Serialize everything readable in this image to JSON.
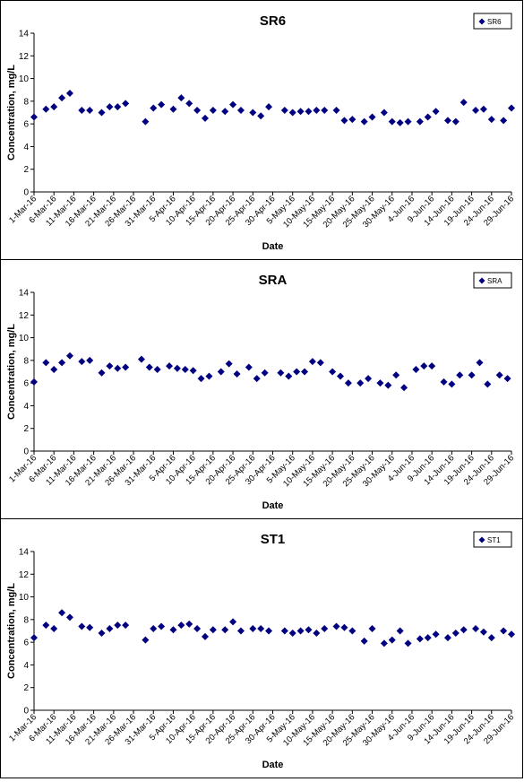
{
  "chart_data": [
    {
      "type": "scatter",
      "title": "SR6",
      "xlabel": "Date",
      "ylabel": "Concentration, mg/L",
      "ylim": [
        0,
        14
      ],
      "yticks": [
        0,
        2,
        4,
        6,
        8,
        10,
        12,
        14
      ],
      "xlim": [
        "2016-03-01",
        "2016-06-29"
      ],
      "xtick_labels": [
        "1-Mar-16",
        "6-Mar-16",
        "11-Mar-16",
        "16-Mar-16",
        "21-Mar-16",
        "26-Mar-16",
        "31-Mar-16",
        "5-Apr-16",
        "10-Apr-16",
        "15-Apr-16",
        "20-Apr-16",
        "25-Apr-16",
        "30-Apr-16",
        "5-May-16",
        "10-May-16",
        "15-May-16",
        "20-May-16",
        "25-May-16",
        "30-May-16",
        "4-Jun-16",
        "9-Jun-16",
        "14-Jun-16",
        "19-Jun-16",
        "24-Jun-16",
        "29-Jun-16"
      ],
      "legend": "top-right",
      "grid": false,
      "series": [
        {
          "name": "SR6",
          "color": "#000080",
          "points": [
            [
              "2016-03-01",
              6.6
            ],
            [
              "2016-03-04",
              7.3
            ],
            [
              "2016-03-06",
              7.5
            ],
            [
              "2016-03-08",
              8.3
            ],
            [
              "2016-03-10",
              8.7
            ],
            [
              "2016-03-13",
              7.2
            ],
            [
              "2016-03-15",
              7.2
            ],
            [
              "2016-03-18",
              7.0
            ],
            [
              "2016-03-20",
              7.5
            ],
            [
              "2016-03-22",
              7.5
            ],
            [
              "2016-03-24",
              7.8
            ],
            [
              "2016-03-29",
              6.2
            ],
            [
              "2016-03-31",
              7.4
            ],
            [
              "2016-04-02",
              7.7
            ],
            [
              "2016-04-05",
              7.3
            ],
            [
              "2016-04-07",
              8.3
            ],
            [
              "2016-04-09",
              7.8
            ],
            [
              "2016-04-11",
              7.2
            ],
            [
              "2016-04-13",
              6.5
            ],
            [
              "2016-04-15",
              7.2
            ],
            [
              "2016-04-18",
              7.1
            ],
            [
              "2016-04-20",
              7.7
            ],
            [
              "2016-04-22",
              7.2
            ],
            [
              "2016-04-25",
              7.0
            ],
            [
              "2016-04-27",
              6.7
            ],
            [
              "2016-04-29",
              7.5
            ],
            [
              "2016-05-03",
              7.2
            ],
            [
              "2016-05-05",
              7.0
            ],
            [
              "2016-05-07",
              7.1
            ],
            [
              "2016-05-09",
              7.1
            ],
            [
              "2016-05-11",
              7.2
            ],
            [
              "2016-05-13",
              7.2
            ],
            [
              "2016-05-16",
              7.2
            ],
            [
              "2016-05-18",
              6.3
            ],
            [
              "2016-05-20",
              6.4
            ],
            [
              "2016-05-23",
              6.2
            ],
            [
              "2016-05-25",
              6.6
            ],
            [
              "2016-05-28",
              7.0
            ],
            [
              "2016-05-30",
              6.2
            ],
            [
              "2016-06-01",
              6.1
            ],
            [
              "2016-06-03",
              6.2
            ],
            [
              "2016-06-06",
              6.2
            ],
            [
              "2016-06-08",
              6.6
            ],
            [
              "2016-06-10",
              7.1
            ],
            [
              "2016-06-13",
              6.3
            ],
            [
              "2016-06-15",
              6.2
            ],
            [
              "2016-06-17",
              7.9
            ],
            [
              "2016-06-20",
              7.2
            ],
            [
              "2016-06-22",
              7.3
            ],
            [
              "2016-06-24",
              6.4
            ],
            [
              "2016-06-27",
              6.3
            ],
            [
              "2016-06-29",
              7.4
            ]
          ]
        }
      ]
    },
    {
      "type": "scatter",
      "title": "SRA",
      "xlabel": "Date",
      "ylabel": "Concentration, mg/L",
      "ylim": [
        0,
        14
      ],
      "yticks": [
        0,
        2,
        4,
        6,
        8,
        10,
        12,
        14
      ],
      "xlim": [
        "2016-03-01",
        "2016-06-29"
      ],
      "xtick_labels": [
        "1-Mar-16",
        "6-Mar-16",
        "11-Mar-16",
        "16-Mar-16",
        "21-Mar-16",
        "26-Mar-16",
        "31-Mar-16",
        "5-Apr-16",
        "10-Apr-16",
        "15-Apr-16",
        "20-Apr-16",
        "25-Apr-16",
        "30-Apr-16",
        "5-May-16",
        "10-May-16",
        "15-May-16",
        "20-May-16",
        "25-May-16",
        "30-May-16",
        "4-Jun-16",
        "9-Jun-16",
        "14-Jun-16",
        "19-Jun-16",
        "24-Jun-16",
        "29-Jun-16"
      ],
      "legend": "top-right",
      "grid": false,
      "series": [
        {
          "name": "SRA",
          "color": "#000080",
          "points": [
            [
              "2016-03-01",
              6.1
            ],
            [
              "2016-03-04",
              7.8
            ],
            [
              "2016-03-06",
              7.2
            ],
            [
              "2016-03-08",
              7.8
            ],
            [
              "2016-03-10",
              8.4
            ],
            [
              "2016-03-13",
              7.9
            ],
            [
              "2016-03-15",
              8.0
            ],
            [
              "2016-03-18",
              6.9
            ],
            [
              "2016-03-20",
              7.5
            ],
            [
              "2016-03-22",
              7.3
            ],
            [
              "2016-03-24",
              7.4
            ],
            [
              "2016-03-28",
              8.1
            ],
            [
              "2016-03-30",
              7.4
            ],
            [
              "2016-04-01",
              7.2
            ],
            [
              "2016-04-04",
              7.5
            ],
            [
              "2016-04-06",
              7.3
            ],
            [
              "2016-04-08",
              7.2
            ],
            [
              "2016-04-10",
              7.1
            ],
            [
              "2016-04-12",
              6.4
            ],
            [
              "2016-04-14",
              6.6
            ],
            [
              "2016-04-17",
              7.0
            ],
            [
              "2016-04-19",
              7.7
            ],
            [
              "2016-04-21",
              6.8
            ],
            [
              "2016-04-24",
              7.4
            ],
            [
              "2016-04-26",
              6.4
            ],
            [
              "2016-04-28",
              6.9
            ],
            [
              "2016-05-02",
              6.9
            ],
            [
              "2016-05-04",
              6.6
            ],
            [
              "2016-05-06",
              7.0
            ],
            [
              "2016-05-08",
              7.0
            ],
            [
              "2016-05-10",
              7.9
            ],
            [
              "2016-05-12",
              7.8
            ],
            [
              "2016-05-15",
              7.0
            ],
            [
              "2016-05-17",
              6.6
            ],
            [
              "2016-05-19",
              6.0
            ],
            [
              "2016-05-22",
              6.0
            ],
            [
              "2016-05-24",
              6.4
            ],
            [
              "2016-05-27",
              6.0
            ],
            [
              "2016-05-29",
              5.8
            ],
            [
              "2016-05-31",
              6.7
            ],
            [
              "2016-06-02",
              5.6
            ],
            [
              "2016-06-05",
              7.2
            ],
            [
              "2016-06-07",
              7.5
            ],
            [
              "2016-06-09",
              7.5
            ],
            [
              "2016-06-12",
              6.1
            ],
            [
              "2016-06-14",
              5.9
            ],
            [
              "2016-06-16",
              6.7
            ],
            [
              "2016-06-19",
              6.7
            ],
            [
              "2016-06-21",
              7.8
            ],
            [
              "2016-06-23",
              5.9
            ],
            [
              "2016-06-26",
              6.7
            ],
            [
              "2016-06-28",
              6.4
            ]
          ]
        }
      ]
    },
    {
      "type": "scatter",
      "title": "ST1",
      "xlabel": "Date",
      "ylabel": "Concentration, mg/L",
      "ylim": [
        0,
        14
      ],
      "yticks": [
        0,
        2,
        4,
        6,
        8,
        10,
        12,
        14
      ],
      "xlim": [
        "2016-03-01",
        "2016-06-29"
      ],
      "xtick_labels": [
        "1-Mar-16",
        "6-Mar-16",
        "11-Mar-16",
        "16-Mar-16",
        "21-Mar-16",
        "26-Mar-16",
        "31-Mar-16",
        "5-Apr-16",
        "10-Apr-16",
        "15-Apr-16",
        "20-Apr-16",
        "25-Apr-16",
        "30-Apr-16",
        "5-May-16",
        "10-May-16",
        "15-May-16",
        "20-May-16",
        "25-May-16",
        "30-May-16",
        "4-Jun-16",
        "9-Jun-16",
        "14-Jun-16",
        "19-Jun-16",
        "24-Jun-16",
        "29-Jun-16"
      ],
      "legend": "top-right",
      "grid": false,
      "series": [
        {
          "name": "ST1",
          "color": "#000080",
          "points": [
            [
              "2016-03-01",
              6.4
            ],
            [
              "2016-03-04",
              7.5
            ],
            [
              "2016-03-06",
              7.2
            ],
            [
              "2016-03-08",
              8.6
            ],
            [
              "2016-03-10",
              8.2
            ],
            [
              "2016-03-13",
              7.4
            ],
            [
              "2016-03-15",
              7.3
            ],
            [
              "2016-03-18",
              6.8
            ],
            [
              "2016-03-20",
              7.2
            ],
            [
              "2016-03-22",
              7.5
            ],
            [
              "2016-03-24",
              7.5
            ],
            [
              "2016-03-29",
              6.2
            ],
            [
              "2016-03-31",
              7.2
            ],
            [
              "2016-04-02",
              7.4
            ],
            [
              "2016-04-05",
              7.1
            ],
            [
              "2016-04-07",
              7.5
            ],
            [
              "2016-04-09",
              7.6
            ],
            [
              "2016-04-11",
              7.2
            ],
            [
              "2016-04-13",
              6.5
            ],
            [
              "2016-04-15",
              7.1
            ],
            [
              "2016-04-18",
              7.1
            ],
            [
              "2016-04-20",
              7.8
            ],
            [
              "2016-04-22",
              7.0
            ],
            [
              "2016-04-25",
              7.2
            ],
            [
              "2016-04-27",
              7.2
            ],
            [
              "2016-04-29",
              7.0
            ],
            [
              "2016-05-03",
              7.0
            ],
            [
              "2016-05-05",
              6.8
            ],
            [
              "2016-05-07",
              7.0
            ],
            [
              "2016-05-09",
              7.1
            ],
            [
              "2016-05-11",
              6.8
            ],
            [
              "2016-05-13",
              7.2
            ],
            [
              "2016-05-16",
              7.4
            ],
            [
              "2016-05-18",
              7.3
            ],
            [
              "2016-05-20",
              7.0
            ],
            [
              "2016-05-23",
              6.1
            ],
            [
              "2016-05-25",
              7.2
            ],
            [
              "2016-05-28",
              5.9
            ],
            [
              "2016-05-30",
              6.2
            ],
            [
              "2016-06-01",
              7.0
            ],
            [
              "2016-06-03",
              5.9
            ],
            [
              "2016-06-06",
              6.3
            ],
            [
              "2016-06-08",
              6.4
            ],
            [
              "2016-06-10",
              6.7
            ],
            [
              "2016-06-13",
              6.4
            ],
            [
              "2016-06-15",
              6.8
            ],
            [
              "2016-06-17",
              7.1
            ],
            [
              "2016-06-20",
              7.2
            ],
            [
              "2016-06-22",
              6.9
            ],
            [
              "2016-06-24",
              6.4
            ],
            [
              "2016-06-27",
              7.0
            ],
            [
              "2016-06-29",
              6.7
            ]
          ]
        }
      ]
    }
  ]
}
